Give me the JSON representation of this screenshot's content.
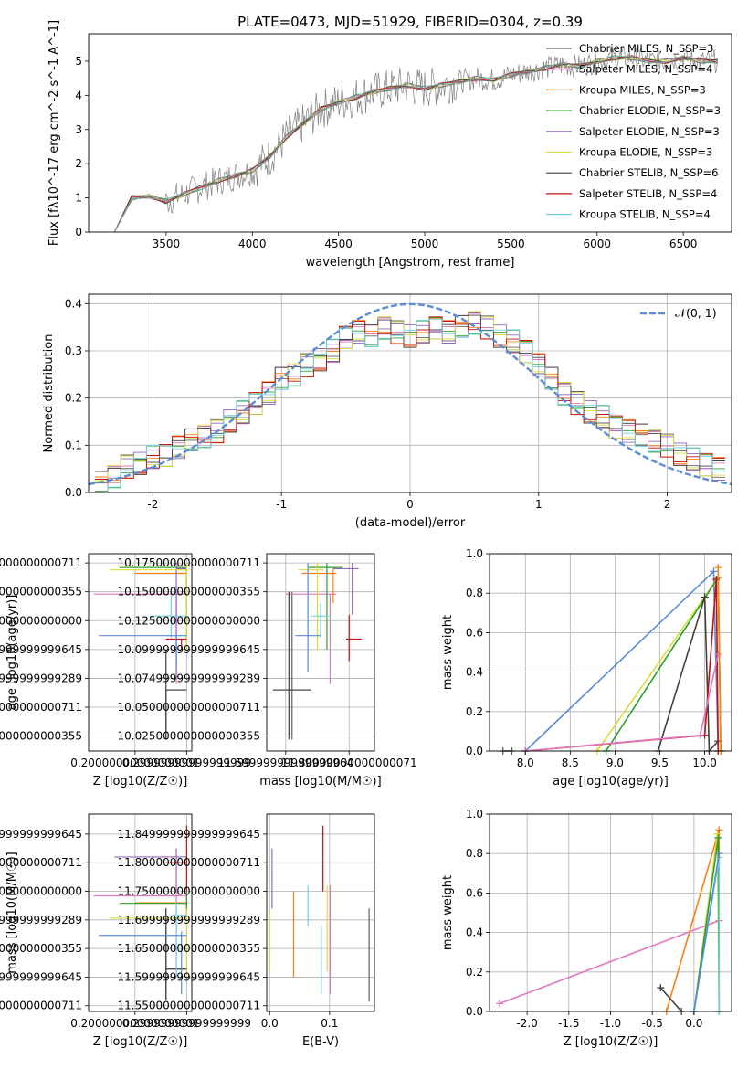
{
  "figure": {
    "suptitle": "PLATE=0473, MJD=51929, FIBERID=0304, z=0.39"
  },
  "colors": {
    "Chabrier MILES": "#606060",
    "Salpeter MILES": "#e377c2",
    "Kroupa MILES": "#ff7f0e",
    "Chabrier ELODIE": "#2ca02c",
    "Salpeter ELODIE": "#9467bd",
    "Kroupa ELODIE": "#dbdb3d",
    "Chabrier STELIB": "#404040",
    "Salpeter STELIB": "#c01010",
    "Kroupa STELIB": "#6fd0e0",
    "extra": "#5a8ad8",
    "normal": "#5b8dd6"
  },
  "chart_data": [
    {
      "id": "spectrum",
      "type": "line",
      "xlabel": "wavelength [Angstrom, rest frame]",
      "ylabel": "Flux [f$_\\lambda$10$^{-17}$ erg cm$^{-2}$ s$^{-1}$ A$^{-1}$]",
      "xlim": [
        3050,
        6780
      ],
      "ylim": [
        0,
        5.8
      ],
      "xticks": [
        3500,
        4000,
        4500,
        5000,
        5500,
        6000,
        6500
      ],
      "yticks": [
        0,
        1,
        2,
        3,
        4,
        5
      ],
      "legend": "top-right",
      "data_x": [
        3200,
        3300,
        3400,
        3500,
        3600,
        3700,
        3800,
        3900,
        4000,
        4100,
        4200,
        4300,
        4400,
        4500,
        4600,
        4700,
        4800,
        4900,
        5000,
        5100,
        5200,
        5300,
        5400,
        5500,
        5600,
        5700,
        5800,
        5900,
        6000,
        6100,
        6200,
        6300,
        6400,
        6500,
        6600,
        6700
      ],
      "data_y": [
        0.0,
        1.0,
        1.05,
        0.9,
        1.1,
        1.3,
        1.5,
        1.65,
        1.8,
        2.2,
        2.8,
        3.2,
        3.6,
        3.8,
        3.95,
        4.1,
        4.2,
        4.3,
        4.2,
        4.3,
        4.4,
        4.5,
        4.45,
        4.6,
        4.7,
        4.8,
        4.9,
        4.85,
        5.0,
        5.1,
        5.1,
        5.0,
        5.0,
        5.1,
        5.0,
        5.0
      ],
      "series": [
        {
          "name": "Chabrier MILES, N$_{SSP}$=3"
        },
        {
          "name": "Salpeter MILES, N$_{SSP}$=4"
        },
        {
          "name": "Kroupa MILES, N$_{SSP}$=3"
        },
        {
          "name": "Chabrier ELODIE, N$_{SSP}$=3"
        },
        {
          "name": "Salpeter ELODIE, N$_{SSP}$=3"
        },
        {
          "name": "Kroupa ELODIE, N$_{SSP}$=3"
        },
        {
          "name": "Chabrier STELIB, N$_{SSP}$=6"
        },
        {
          "name": "Salpeter STELIB, N$_{SSP}$=4"
        },
        {
          "name": "Kroupa STELIB, N$_{SSP}$=4"
        }
      ]
    },
    {
      "id": "residuals",
      "type": "histogram",
      "xlabel": "(data-model)/error",
      "ylabel": "Normed distribution",
      "xlim": [
        -2.5,
        2.5
      ],
      "ylim": [
        0,
        0.42
      ],
      "xticks": [
        -2,
        -1,
        0,
        1,
        2
      ],
      "yticks": [
        0.0,
        0.1,
        0.2,
        0.3,
        0.4
      ],
      "legend": "top-right",
      "legend_label": "$\\mathcal{N}(0,1)$",
      "bins": [
        -2.4,
        -2.3,
        -2.2,
        -2.1,
        -2.0,
        -1.9,
        -1.8,
        -1.7,
        -1.6,
        -1.5,
        -1.4,
        -1.3,
        -1.2,
        -1.1,
        -1.0,
        -0.9,
        -0.8,
        -0.7,
        -0.6,
        -0.5,
        -0.4,
        -0.3,
        -0.2,
        -0.1,
        0.0,
        0.1,
        0.2,
        0.3,
        0.4,
        0.5,
        0.6,
        0.7,
        0.8,
        0.9,
        1.0,
        1.1,
        1.2,
        1.3,
        1.4,
        1.5,
        1.6,
        1.7,
        1.8,
        1.9,
        2.0,
        2.1,
        2.2,
        2.3,
        2.4,
        2.5
      ],
      "heights": [
        0.02,
        0.035,
        0.055,
        0.06,
        0.075,
        0.08,
        0.095,
        0.11,
        0.12,
        0.13,
        0.15,
        0.17,
        0.19,
        0.21,
        0.24,
        0.25,
        0.27,
        0.28,
        0.3,
        0.33,
        0.34,
        0.33,
        0.35,
        0.34,
        0.33,
        0.34,
        0.35,
        0.34,
        0.35,
        0.36,
        0.35,
        0.33,
        0.32,
        0.3,
        0.27,
        0.24,
        0.21,
        0.19,
        0.17,
        0.16,
        0.14,
        0.13,
        0.12,
        0.11,
        0.1,
        0.08,
        0.07,
        0.06,
        0.05
      ]
    },
    {
      "id": "age_vs_Z",
      "type": "errorbar",
      "xlabel": "Z [log$_{10}$($Z/Z_\\odot$)]",
      "ylabel": "age  [log$_{10}$($age/yr$)]",
      "xlim": [
        0.11,
        0.31
      ],
      "ylim": [
        10.012,
        10.183
      ],
      "xticks": [
        0.2,
        0.3
      ],
      "yticks": [
        10.025,
        10.05,
        10.075,
        10.1,
        10.125,
        10.15,
        10.175
      ],
      "points": [
        {
          "model": "Chabrier MILES",
          "x": 0.26,
          "xerr": [
            0.26,
            0.3
          ],
          "y": 10.065,
          "yerr": [
            10.022,
            10.065
          ]
        },
        {
          "model": "Salpeter MILES",
          "x": 0.28,
          "xerr": [
            0.12,
            0.3
          ],
          "y": 10.148,
          "yerr": [
            10.07,
            10.148
          ]
        },
        {
          "model": "Kroupa MILES",
          "x": 0.3,
          "xerr": [
            0.2,
            0.3
          ],
          "y": 10.166,
          "yerr": [
            10.14,
            10.17
          ]
        },
        {
          "model": "Chabrier ELODIE",
          "x": 0.3,
          "xerr": [
            0.17,
            0.3
          ],
          "y": 10.171,
          "yerr": [
            10.1,
            10.175
          ]
        },
        {
          "model": "Salpeter ELODIE",
          "x": 0.28,
          "xerr": [
            0.28,
            0.3
          ],
          "y": 10.17,
          "yerr": [
            10.075,
            10.175
          ]
        },
        {
          "model": "Kroupa ELODIE",
          "x": 0.3,
          "xerr": [
            0.15,
            0.3
          ],
          "y": 10.169,
          "yerr": [
            10.1,
            10.175
          ]
        },
        {
          "model": "Chabrier STELIB",
          "x": 0.26,
          "xerr": [
            0.26,
            0.3
          ],
          "y": 10.065,
          "yerr": [
            10.022,
            10.1
          ]
        },
        {
          "model": "Salpeter STELIB",
          "x": 0.29,
          "xerr": [
            0.26,
            0.3
          ],
          "y": 10.109,
          "yerr": [
            10.1,
            10.109
          ]
        },
        {
          "model": "Kroupa STELIB",
          "x": 0.27,
          "xerr": [
            0.23,
            0.3
          ],
          "y": 10.129,
          "yerr": [
            10.11,
            10.15
          ]
        },
        {
          "model": "extra",
          "x": 0.28,
          "xerr": [
            0.13,
            0.3
          ],
          "y": 10.112,
          "yerr": [
            10.085,
            10.112
          ]
        }
      ]
    },
    {
      "id": "age_vs_mass",
      "type": "errorbar",
      "xlabel": "mass [log$_{10}$($M/M_\\odot$)]",
      "xlim": [
        11.54,
        11.88
      ],
      "ylim": [
        10.012,
        10.183
      ],
      "xticks": [
        11.6,
        11.8
      ],
      "yticks": [
        10.025,
        10.05,
        10.075,
        10.1,
        10.125,
        10.15,
        10.175
      ],
      "points": [
        {
          "model": "Chabrier MILES",
          "x": 11.62,
          "xerr": [
            11.56,
            11.68
          ],
          "y": 10.065,
          "yerr": [
            10.022,
            10.15
          ]
        },
        {
          "model": "Salpeter MILES",
          "x": 11.74,
          "xerr": [
            11.6,
            11.76
          ],
          "y": 10.148,
          "yerr": [
            10.07,
            10.148
          ]
        },
        {
          "model": "Kroupa MILES",
          "x": 11.75,
          "xerr": [
            11.65,
            11.76
          ],
          "y": 10.166,
          "yerr": [
            10.14,
            10.17
          ]
        },
        {
          "model": "Chabrier ELODIE",
          "x": 11.73,
          "xerr": [
            11.67,
            11.78
          ],
          "y": 10.171,
          "yerr": [
            10.1,
            10.175
          ]
        },
        {
          "model": "Salpeter ELODIE",
          "x": 11.81,
          "xerr": [
            11.75,
            11.83
          ],
          "y": 10.17,
          "yerr": [
            10.13,
            10.175
          ]
        },
        {
          "model": "Kroupa ELODIE",
          "x": 11.7,
          "xerr": [
            11.64,
            11.72
          ],
          "y": 10.169,
          "yerr": [
            10.1,
            10.175
          ]
        },
        {
          "model": "Chabrier STELIB",
          "x": 11.61,
          "xerr": [
            11.56,
            11.68
          ],
          "y": 10.065,
          "yerr": [
            10.022,
            10.15
          ]
        },
        {
          "model": "Salpeter STELIB",
          "x": 11.8,
          "xerr": [
            11.79,
            11.84
          ],
          "y": 10.109,
          "yerr": [
            10.09,
            10.13
          ]
        },
        {
          "model": "Kroupa STELIB",
          "x": 11.71,
          "xerr": [
            11.68,
            11.74
          ],
          "y": 10.129,
          "yerr": [
            10.11,
            10.14
          ]
        },
        {
          "model": "extra",
          "x": 11.67,
          "xerr": [
            11.63,
            11.71
          ],
          "y": 10.112,
          "yerr": [
            10.08,
            10.175
          ]
        }
      ]
    },
    {
      "id": "mass_weight_vs_age",
      "type": "line",
      "xlabel": "age  [log$_{10}$($age/yr$)]",
      "ylabel": "mass weight",
      "xlim": [
        7.6,
        10.3
      ],
      "ylim": [
        0,
        1
      ],
      "xticks": [
        8.0,
        8.5,
        9.0,
        9.5,
        10.0
      ],
      "yticks": [
        0.0,
        0.2,
        0.4,
        0.6,
        0.8,
        1.0
      ],
      "series": [
        {
          "model": "extra",
          "x": [
            8.0,
            10.1,
            10.15
          ],
          "y": [
            0.0,
            0.91,
            0.0
          ]
        },
        {
          "model": "Kroupa ELODIE",
          "x": [
            8.8,
            10.15,
            10.18
          ],
          "y": [
            0.0,
            0.88,
            0.0
          ]
        },
        {
          "model": "Chabrier ELODIE",
          "x": [
            8.9,
            10.15,
            10.18
          ],
          "y": [
            0.0,
            0.88,
            0.0
          ]
        },
        {
          "model": "Chabrier STELIB",
          "x": [
            9.48,
            10.0,
            10.05,
            10.15
          ],
          "y": [
            0.0,
            0.78,
            0.0,
            0.05
          ]
        },
        {
          "model": "Salpeter STELIB",
          "x": [
            8.0,
            10.0,
            10.13,
            10.15
          ],
          "y": [
            0.0,
            0.08,
            0.87,
            0.0
          ]
        },
        {
          "model": "Salpeter MILES",
          "x": [
            8.0,
            9.95,
            10.15
          ],
          "y": [
            0.0,
            0.08,
            0.49
          ]
        },
        {
          "model": "Chabrier MILES",
          "x": [
            7.75,
            7.85
          ],
          "y": [
            0.0,
            0.0
          ]
        },
        {
          "model": "Kroupa MILES",
          "x": [
            10.15,
            10.18
          ],
          "y": [
            0.93,
            0.0
          ]
        }
      ]
    },
    {
      "id": "mass_vs_Z",
      "type": "errorbar",
      "xlabel": "Z [log$_{10}$($Z/Z_\\odot$)]",
      "ylabel": "mass [log$_{10}$($M/M_\\odot$)]",
      "xlim": [
        0.11,
        0.31
      ],
      "ylim": [
        11.54,
        11.885
      ],
      "xticks": [
        0.2,
        0.3
      ],
      "yticks": [
        11.55,
        11.6,
        11.65,
        11.7,
        11.75,
        11.8,
        11.85
      ],
      "points": [
        {
          "model": "Chabrier MILES",
          "x": 0.26,
          "xerr": [
            0.26,
            0.3
          ],
          "y": 11.614,
          "yerr": [
            11.56,
            11.72
          ]
        },
        {
          "model": "Salpeter MILES",
          "x": 0.28,
          "xerr": [
            0.12,
            0.3
          ],
          "y": 11.742,
          "yerr": [
            11.6,
            11.75
          ]
        },
        {
          "model": "Kroupa MILES",
          "x": 0.3,
          "xerr": [
            0.2,
            0.3
          ],
          "y": 11.73,
          "yerr": [
            11.7,
            11.75
          ]
        },
        {
          "model": "Chabrier ELODIE",
          "x": 0.3,
          "xerr": [
            0.17,
            0.3
          ],
          "y": 11.729,
          "yerr": [
            11.7,
            11.76
          ]
        },
        {
          "model": "Salpeter ELODIE",
          "x": 0.28,
          "xerr": [
            0.16,
            0.3
          ],
          "y": 11.81,
          "yerr": [
            11.75,
            11.825
          ]
        },
        {
          "model": "Kroupa ELODIE",
          "x": 0.3,
          "xerr": [
            0.15,
            0.3
          ],
          "y": 11.703,
          "yerr": [
            11.6,
            11.72
          ]
        },
        {
          "model": "Chabrier STELIB",
          "x": 0.26,
          "xerr": [
            0.26,
            0.3
          ],
          "y": 11.614,
          "yerr": [
            11.56,
            11.72
          ]
        },
        {
          "model": "Salpeter STELIB",
          "x": 0.3,
          "xerr": [
            0.26,
            0.3
          ],
          "y": 11.8,
          "yerr": [
            11.75,
            11.865
          ]
        },
        {
          "model": "Kroupa STELIB",
          "x": 0.28,
          "xerr": [
            0.27,
            0.3
          ],
          "y": 11.708,
          "yerr": [
            11.6,
            11.73
          ]
        },
        {
          "model": "extra",
          "x": 0.29,
          "xerr": [
            0.13,
            0.3
          ],
          "y": 11.673,
          "yerr": [
            11.57,
            11.68
          ]
        }
      ]
    },
    {
      "id": "mass_vs_ebv",
      "type": "errorbar",
      "xlabel": "E(B-V)",
      "xlim": [
        -0.005,
        0.175
      ],
      "ylim": [
        11.54,
        11.885
      ],
      "xticks": [
        0.0,
        0.1
      ],
      "yticks": [
        11.55,
        11.6,
        11.65,
        11.7,
        11.75,
        11.8,
        11.85
      ],
      "points": [
        {
          "model": "Chabrier MILES",
          "x": 0.166,
          "yerr": [
            11.557,
            11.72
          ]
        },
        {
          "model": "Salpeter MILES",
          "x": 0.101,
          "yerr": [
            11.57,
            11.76
          ]
        },
        {
          "model": "Kroupa MILES",
          "x": 0.04,
          "yerr": [
            11.6,
            11.75
          ]
        },
        {
          "model": "Salpeter ELODIE",
          "x": 0.004,
          "yerr": [
            11.72,
            11.825
          ]
        },
        {
          "model": "Kroupa ELODIE",
          "x": 0.0,
          "yerr": [
            11.61,
            11.715
          ]
        },
        {
          "model": "Salpeter STELIB",
          "x": 0.089,
          "yerr": [
            11.75,
            11.865
          ]
        },
        {
          "model": "Kroupa STELIB",
          "x": 0.064,
          "yerr": [
            11.69,
            11.76
          ]
        },
        {
          "model": "Kroupa ELODIE",
          "x": 0.096,
          "yerr": [
            11.61,
            11.76
          ]
        },
        {
          "model": "extra",
          "x": 0.086,
          "yerr": [
            11.57,
            11.69
          ]
        }
      ]
    },
    {
      "id": "mass_weight_vs_Z",
      "type": "line",
      "xlabel": "Z [log$_{10}$($Z/Z_\\odot$)]",
      "ylabel": "mass weight",
      "xlim": [
        -2.45,
        0.45
      ],
      "ylim": [
        0,
        1
      ],
      "xticks": [
        -2.0,
        -1.5,
        -1.0,
        -0.5,
        0.0
      ],
      "yticks": [
        0.0,
        0.2,
        0.4,
        0.6,
        0.8,
        1.0
      ],
      "series": [
        {
          "model": "Salpeter MILES",
          "x": [
            -2.33,
            0.3
          ],
          "y": [
            0.04,
            0.46
          ]
        },
        {
          "model": "Kroupa MILES",
          "x": [
            -0.33,
            0.3,
            0.3
          ],
          "y": [
            0.0,
            0.92,
            0.0
          ]
        },
        {
          "model": "Chabrier STELIB",
          "x": [
            -0.4,
            -0.15
          ],
          "y": [
            0.12,
            0.0
          ]
        },
        {
          "model": "Kroupa ELODIE",
          "x": [
            0.0,
            0.28,
            0.3
          ],
          "y": [
            0.0,
            0.9,
            0.0
          ]
        },
        {
          "model": "Chabrier ELODIE",
          "x": [
            0.0,
            0.29,
            0.3
          ],
          "y": [
            0.0,
            0.88,
            0.0
          ]
        },
        {
          "model": "Kroupa STELIB",
          "x": [
            0.0,
            0.3,
            0.3
          ],
          "y": [
            0.0,
            0.78,
            0.0
          ]
        },
        {
          "model": "extra",
          "x": [
            0.0,
            0.3
          ],
          "y": [
            0.0,
            0.8
          ]
        }
      ]
    }
  ]
}
